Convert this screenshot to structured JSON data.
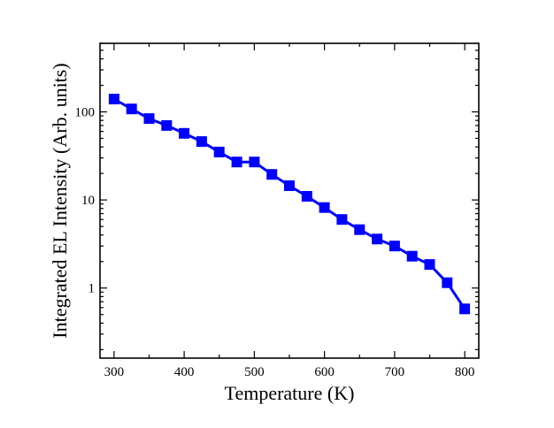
{
  "chart_data": {
    "type": "line",
    "title": "",
    "xlabel": "Temperature (K)",
    "ylabel": "Integrated EL Intensity (Arb. units)",
    "xlim": [
      280,
      820
    ],
    "ylim": [
      0.16,
      600
    ],
    "y_scale": "log",
    "x_ticks": [
      300,
      400,
      500,
      600,
      700,
      800
    ],
    "x_tick_labels": [
      "300",
      "400",
      "500",
      "600",
      "700",
      "800"
    ],
    "y_ticks": [
      1,
      10,
      100
    ],
    "y_tick_labels": [
      "1",
      "10",
      "100"
    ],
    "grid": false,
    "legend": "none",
    "marker": "square",
    "color": "#0000ff",
    "series": [
      {
        "x": [
          300,
          325,
          350,
          375,
          400,
          425,
          450,
          475,
          500,
          525,
          550,
          575,
          600,
          625,
          650,
          675,
          700,
          725,
          750,
          775,
          800
        ],
        "y": [
          140,
          108,
          84,
          70,
          57,
          46,
          35,
          27,
          27,
          19.5,
          14.5,
          11,
          8.2,
          6,
          4.6,
          3.6,
          3,
          2.3,
          1.85,
          1.15,
          0.58
        ]
      }
    ]
  }
}
